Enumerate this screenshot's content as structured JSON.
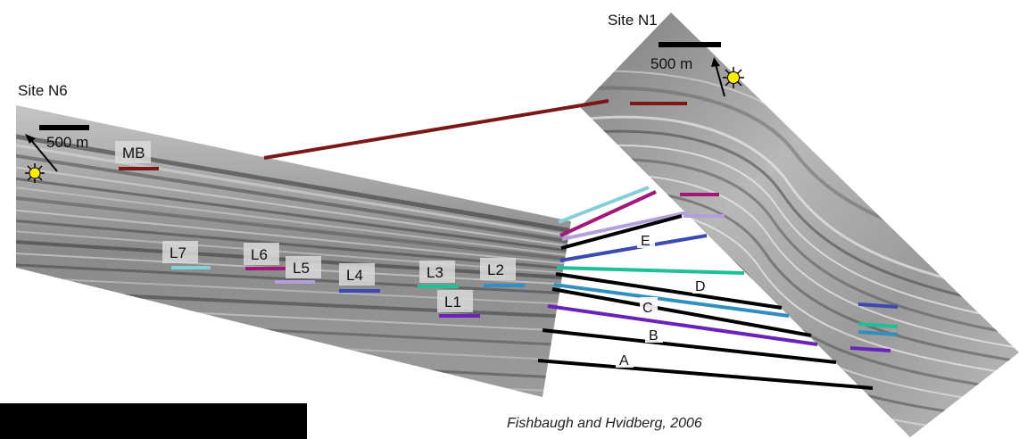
{
  "sites": {
    "n6": "Site N6",
    "n1": "Site N1"
  },
  "scale_bars": {
    "n6": "500 m",
    "n1": "500 m"
  },
  "n6_layers": [
    {
      "id": "mb",
      "label": "MB",
      "color": "#7a1717"
    },
    {
      "id": "l7",
      "label": "L7",
      "color": "#86cfd9"
    },
    {
      "id": "l6",
      "label": "L6",
      "color": "#a3167a"
    },
    {
      "id": "l5",
      "label": "L5",
      "color": "#b29fdb"
    },
    {
      "id": "l4",
      "label": "L4",
      "color": "#3b4ab0"
    },
    {
      "id": "l3",
      "label": "L3",
      "color": "#1fbf97"
    },
    {
      "id": "l2",
      "label": "L2",
      "color": "#2f8fbf"
    },
    {
      "id": "l1",
      "label": "L1",
      "color": "#6a22b8"
    }
  ],
  "correlation_labels": {
    "e": "E",
    "d": "D",
    "c": "C",
    "b": "B",
    "a": "A"
  },
  "colors": {
    "correlation_black": "#000000",
    "sun": "#ffee00"
  },
  "citation": "Fishbaugh and Hvidberg, 2006"
}
